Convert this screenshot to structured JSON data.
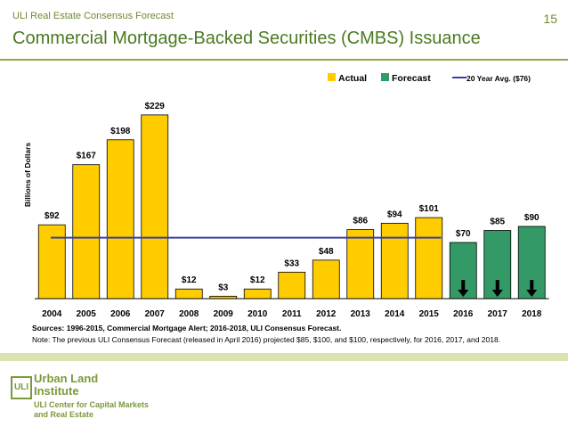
{
  "header": {
    "kicker": "ULI Real Estate Consensus Forecast",
    "title": "Commercial Mortgage-Backed Securities (CMBS) Issuance",
    "page_number": "15"
  },
  "colors": {
    "actual": "#ffcc00",
    "forecast": "#339966",
    "avg_line": "#3b3fa0",
    "brand_green": "#4a7a21"
  },
  "chart_data": {
    "type": "bar",
    "categories": [
      "2004",
      "2005",
      "2006",
      "2007",
      "2008",
      "2009",
      "2010",
      "2011",
      "2012",
      "2013",
      "2014",
      "2015",
      "2016",
      "2017",
      "2018"
    ],
    "values": [
      92,
      167,
      198,
      229,
      12,
      3,
      12,
      33,
      48,
      86,
      94,
      101,
      70,
      85,
      90
    ],
    "value_labels": [
      "$92",
      "$167",
      "$198",
      "$229",
      "$12",
      "$3",
      "$12",
      "$33",
      "$48",
      "$86",
      "$94",
      "$101",
      "$70",
      "$85",
      "$90"
    ],
    "kind": [
      "actual",
      "actual",
      "actual",
      "actual",
      "actual",
      "actual",
      "actual",
      "actual",
      "actual",
      "actual",
      "actual",
      "actual",
      "forecast",
      "forecast",
      "forecast"
    ],
    "ylabel": "Billions of Dollars",
    "ylim": [
      0,
      250
    ],
    "reference_line": {
      "label": "20 Year Avg. ($76)",
      "value": 76
    },
    "legend": {
      "position": "top-right",
      "entries": [
        {
          "name": "Actual",
          "kind": "actual"
        },
        {
          "name": "Forecast",
          "kind": "forecast"
        },
        {
          "name": "20 Year Avg. ($76)",
          "kind": "line"
        }
      ]
    },
    "grid": false
  },
  "notes": {
    "sources": "Sources: 1996-2015, Commercial Mortgage Alert; 2016-2018, ULI Consensus Forecast.",
    "note": "Note: The previous ULI Consensus Forecast (released in April 2016) projected $85, $100, and $100, respectively, for 2016, 2017, and 2018."
  },
  "footer": {
    "logo_mark": "ULI",
    "org_line1": "Urban Land",
    "org_line2": "Institute",
    "center_line1": "ULI Center for Capital Markets",
    "center_line2": "and Real Estate"
  }
}
